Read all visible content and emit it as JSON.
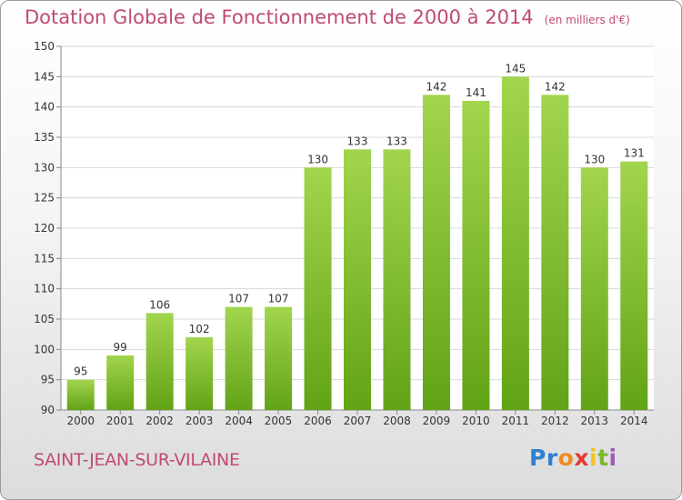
{
  "chart_data": {
    "type": "bar",
    "title": "Dotation Globale de Fonctionnement de 2000 à 2014",
    "subtitle": "(en milliers d'€)",
    "categories": [
      "2000",
      "2001",
      "2002",
      "2003",
      "2004",
      "2005",
      "2006",
      "2007",
      "2008",
      "2009",
      "2010",
      "2011",
      "2012",
      "2013",
      "2014"
    ],
    "values": [
      95,
      99,
      106,
      102,
      107,
      107,
      130,
      133,
      133,
      142,
      141,
      145,
      142,
      130,
      131
    ],
    "ylim": [
      90,
      150
    ],
    "yticks": [
      90,
      95,
      100,
      105,
      110,
      115,
      120,
      125,
      130,
      135,
      140,
      145,
      150
    ],
    "grid": true,
    "colors": {
      "bar_light": "#a2d54e",
      "bar_dark": "#62a316",
      "title": "#c04a74",
      "grid": "#d8d8d8"
    }
  },
  "commune": "SAINT-JEAN-SUR-VILAINE",
  "logo": {
    "letters": [
      "P",
      "r",
      "o",
      "x",
      "i",
      "t",
      "i"
    ],
    "colors": [
      "#2f7fd0",
      "#2f7fd0",
      "#f18a21",
      "#e33b2f",
      "#f4c21c",
      "#7ab829",
      "#9c5fb5"
    ]
  }
}
